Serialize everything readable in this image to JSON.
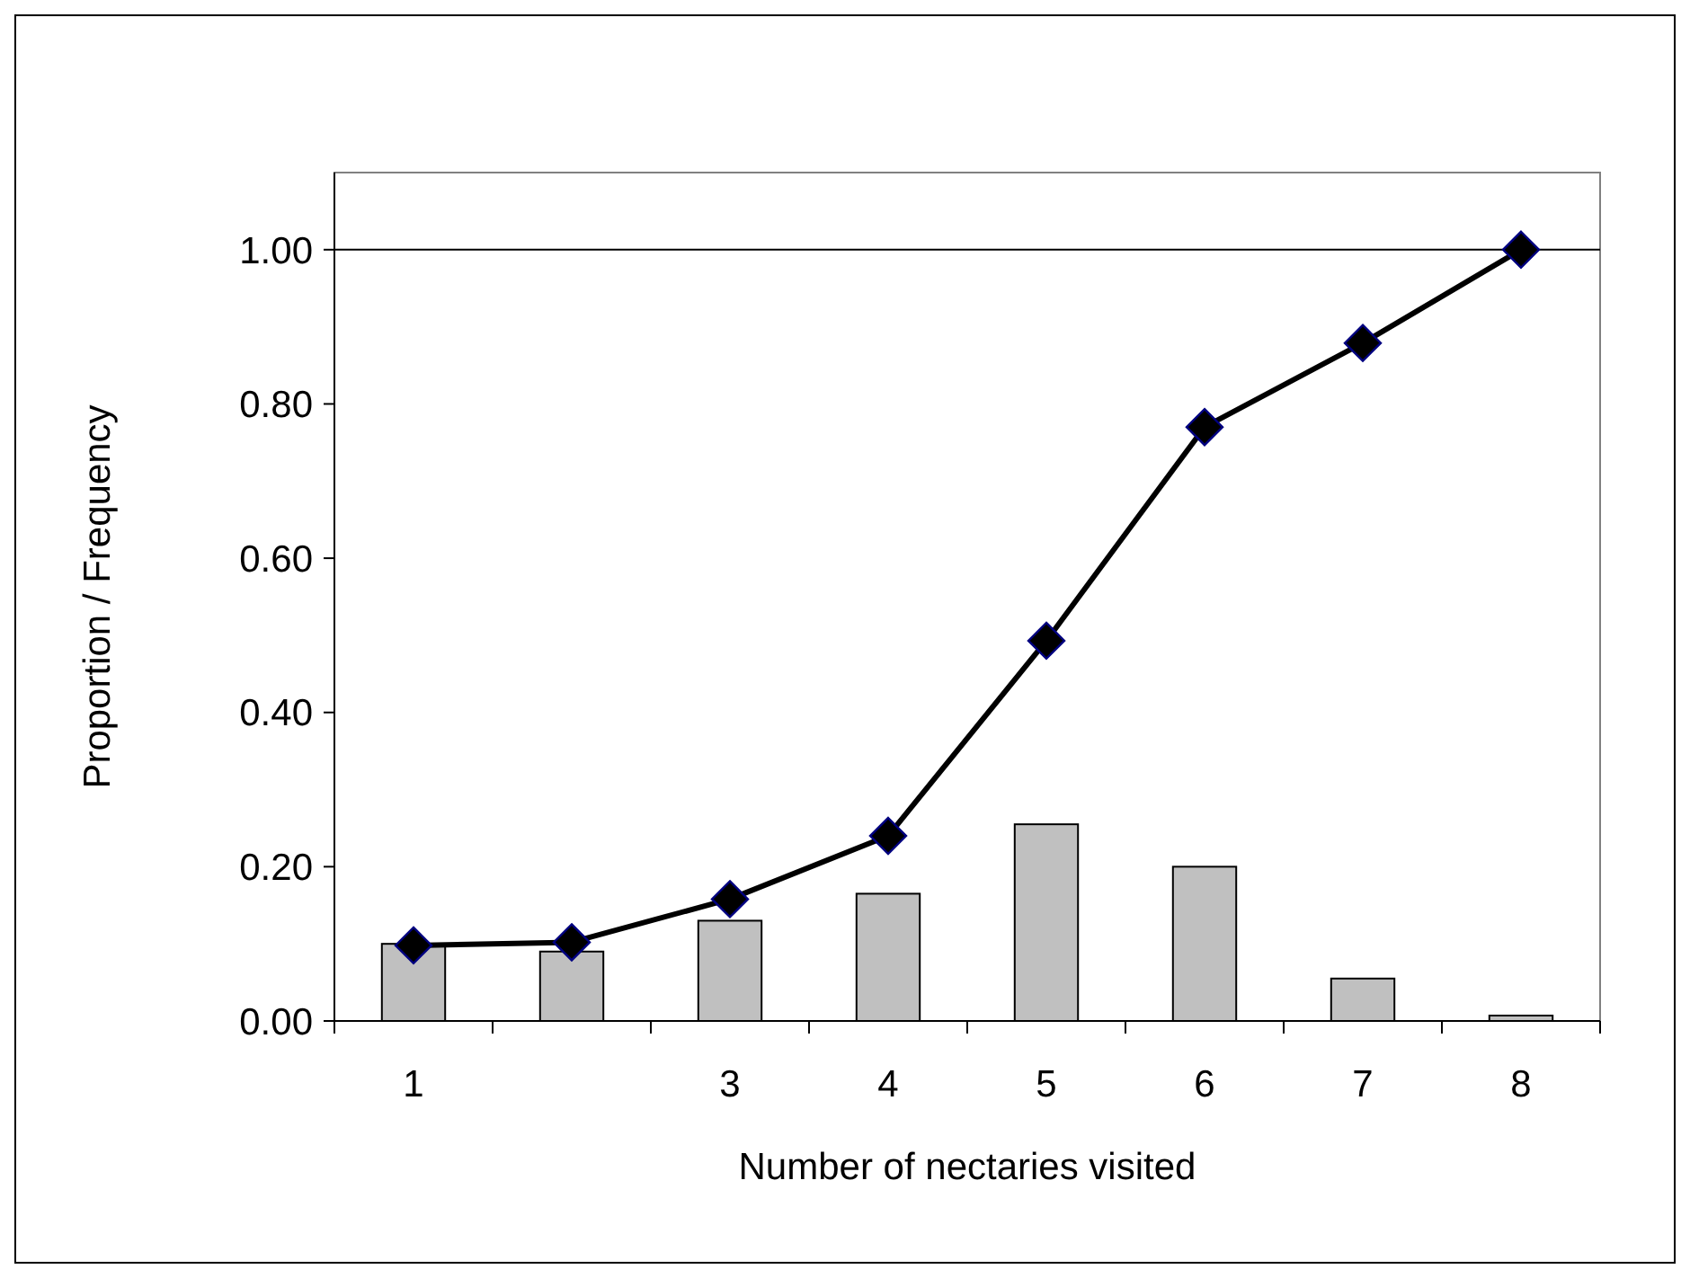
{
  "chart_data": {
    "type": "bar",
    "xlabel": "Number of nectaries visited",
    "ylabel": "Proportion / Frequency",
    "categories": [
      "1",
      null,
      "3",
      "4",
      "5",
      "6",
      "7",
      "8"
    ],
    "series": [
      {
        "color": "#c0c0c0",
        "values": [
          0.1,
          0.09,
          0.13,
          0.165,
          0.255,
          0.2,
          0.055,
          0.007
        ]
      },
      {
        "type": "line",
        "color": "#000000",
        "marker": "diamond",
        "line_style": "solid",
        "values": [
          0.098,
          0.102,
          0.158,
          0.24,
          0.493,
          0.77,
          0.879,
          1.0
        ]
      }
    ],
    "ylim": [
      0,
      1.1
    ],
    "yticks": [
      {
        "value": 0,
        "label": "0.00"
      },
      {
        "value": 0.2,
        "label": "0.20"
      },
      {
        "value": 0.4,
        "label": "0.40"
      },
      {
        "value": 0.6,
        "label": "0.60"
      },
      {
        "value": 0.8,
        "label": "0.80"
      },
      {
        "value": 1,
        "label": "1.00"
      }
    ],
    "ref_lines": [
      {
        "axis": "y",
        "value": 1,
        "color": "#000000"
      }
    ],
    "grid": false
  }
}
